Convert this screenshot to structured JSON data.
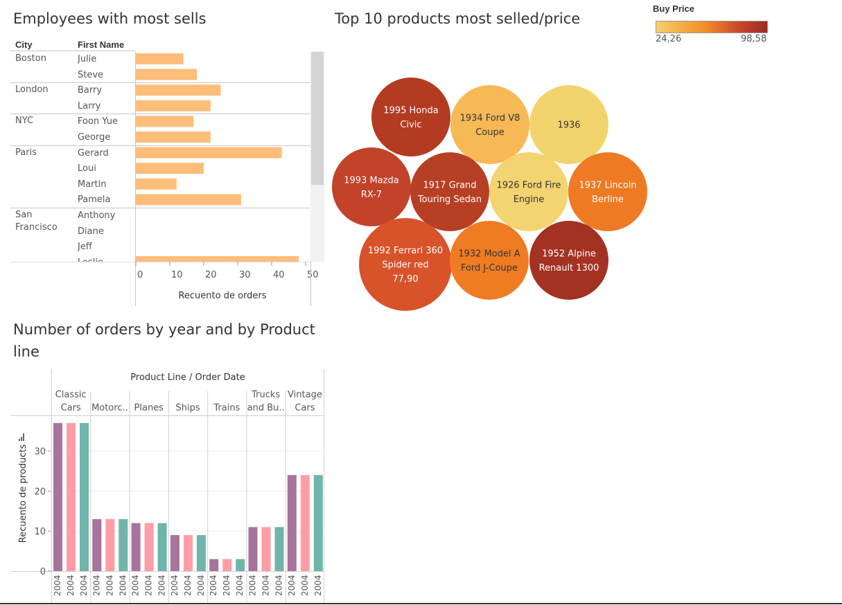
{
  "employees_panel": {
    "title": "Employees with most sells",
    "col_city": "City",
    "col_first_name": "First Name",
    "x_axis_label": "Recuento de orders",
    "x_ticks": [
      "0",
      "10",
      "20",
      "30",
      "40",
      "50"
    ],
    "groups": [
      {
        "city": "Boston",
        "rows": [
          {
            "name": "Julie",
            "value": 14
          },
          {
            "name": "Steve",
            "value": 18
          }
        ]
      },
      {
        "city": "London",
        "rows": [
          {
            "name": "Barry",
            "value": 25
          },
          {
            "name": "Larry",
            "value": 22
          }
        ]
      },
      {
        "city": "NYC",
        "rows": [
          {
            "name": "Foon Yue",
            "value": 17
          },
          {
            "name": "George",
            "value": 22
          }
        ]
      },
      {
        "city": "Paris",
        "rows": [
          {
            "name": "Gerard",
            "value": 43
          },
          {
            "name": "Loui",
            "value": 20
          },
          {
            "name": "Martin",
            "value": 12
          },
          {
            "name": "Pamela",
            "value": 31
          }
        ]
      },
      {
        "city": "San Francisco",
        "city_lines": [
          "San",
          "Francisco"
        ],
        "rows": [
          {
            "name": "Anthony",
            "value": 0
          },
          {
            "name": "Diane",
            "value": 0
          },
          {
            "name": "Jeff",
            "value": 0
          },
          {
            "name": "Leslie",
            "value": 48
          }
        ]
      }
    ],
    "bar_color": "#ffbd7a"
  },
  "products_panel": {
    "title": "Top 10 products most selled/price",
    "legend_title": "Buy Price",
    "legend_min": "24,26",
    "legend_max": "98,58",
    "bubbles": [
      {
        "lines": [
          "1995 Honda",
          "Civic"
        ],
        "color": "#b33b22",
        "text_color": "#ffffff"
      },
      {
        "lines": [
          "1934 Ford V8",
          "Coupe"
        ],
        "color": "#f6b956",
        "text_color": "#333333"
      },
      {
        "lines": [
          "1936"
        ],
        "color": "#f3d46c",
        "text_color": "#333333"
      },
      {
        "lines": [
          "1993 Mazda",
          "RX-7"
        ],
        "color": "#c2422a",
        "text_color": "#ffffff"
      },
      {
        "lines": [
          "1917 Grand",
          "Touring Sedan"
        ],
        "color": "#b73f24",
        "text_color": "#ffffff"
      },
      {
        "lines": [
          "1926 Ford Fire",
          "Engine"
        ],
        "color": "#f4d470",
        "text_color": "#333333"
      },
      {
        "lines": [
          "1937 Lincoln",
          "Berline"
        ],
        "color": "#ee7a23",
        "text_color": "#ffffff"
      },
      {
        "lines": [
          "1992 Ferrari 360",
          "Spider red",
          "77,90"
        ],
        "color": "#d8522a",
        "text_color": "#ffffff"
      },
      {
        "lines": [
          "1932 Model A",
          "Ford J-Coupe"
        ],
        "color": "#ef7c22",
        "text_color": "#333333"
      },
      {
        "lines": [
          "1952 Alpine",
          "Renault 1300"
        ],
        "color": "#a33223",
        "text_color": "#ffffff"
      }
    ]
  },
  "orders_panel": {
    "title_line1": "Number of orders by year and by Product",
    "title_line2": "line",
    "header": "Product Line / Order Date",
    "y_label": "Recuento de products",
    "y_ticks": [
      "0",
      "10",
      "20",
      "30"
    ],
    "year_label": "2004"
  },
  "chart_data": [
    {
      "type": "bar",
      "orientation": "horizontal",
      "title": "Employees with most sells",
      "xlabel": "Recuento de orders",
      "xlim": [
        0,
        50
      ],
      "categories": [
        "Julie",
        "Steve",
        "Barry",
        "Larry",
        "Foon Yue",
        "George",
        "Gerard",
        "Loui",
        "Martin",
        "Pamela",
        "Anthony",
        "Diane",
        "Jeff",
        "Leslie"
      ],
      "values": [
        14,
        18,
        25,
        22,
        17,
        22,
        43,
        20,
        12,
        31,
        0,
        0,
        0,
        48
      ]
    },
    {
      "type": "bar",
      "title": "Number of orders by year and by Product line",
      "ylabel": "Recuento de products",
      "ylim": [
        0,
        38
      ],
      "categories": [
        "Classic Cars",
        "Motorc..",
        "Planes",
        "Ships",
        "Trains",
        "Trucks and Bu..",
        "Vintage Cars"
      ],
      "category_lines": [
        [
          "Classic",
          "Cars"
        ],
        [
          "Motorc.."
        ],
        [
          "Planes"
        ],
        [
          "Ships"
        ],
        [
          "Trains"
        ],
        [
          "Trucks",
          "and Bu.."
        ],
        [
          "Vintage",
          "Cars"
        ]
      ],
      "series": [
        {
          "color": "#a6749c",
          "values": [
            37,
            13,
            12,
            9,
            3,
            11,
            24
          ]
        },
        {
          "color": "#ff9da7",
          "values": [
            37,
            13,
            12,
            9,
            3,
            11,
            24
          ]
        },
        {
          "color": "#6fb5a9",
          "values": [
            37,
            13,
            12,
            9,
            3,
            11,
            24
          ]
        }
      ]
    }
  ]
}
